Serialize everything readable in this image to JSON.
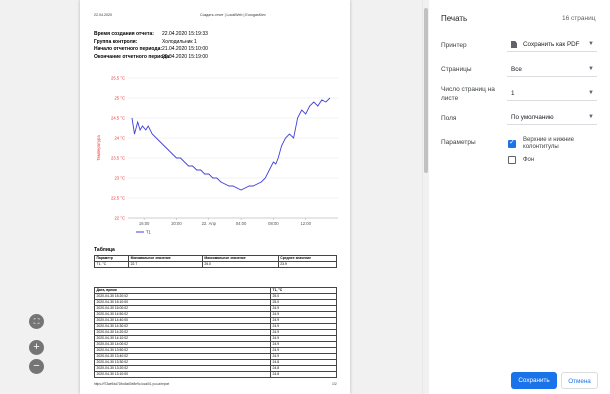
{
  "preview": {
    "header_date": "22.04.2020",
    "header_title": "Создать отчет | LocalWeb | EurogasKiev",
    "info": [
      {
        "label": "Время создания отчета:",
        "value": "22.04.2020 15:19:33"
      },
      {
        "label": "Группа контроля:",
        "value": "Холодильник 1"
      },
      {
        "label": "Начало отчетного периода:",
        "value": "21.04.2020 15:10:00"
      },
      {
        "label": "Окончание отчетного периода:",
        "value": "22.04.2020 15:19:00"
      }
    ],
    "summary_title": "Таблица",
    "summary_headers": [
      "Параметр",
      "Минимальное значение",
      "Максимальное значение",
      "Среднее значение"
    ],
    "summary_row": [
      "T1, °C",
      "22.7",
      "25.0",
      "23.9"
    ],
    "data_headers": [
      "Дата, время",
      "T1, °C"
    ],
    "data_rows": [
      [
        "2020-04-30 15:20:02",
        "25.0"
      ],
      [
        "2020-04-30 15:10:00",
        "25.0"
      ],
      [
        "2020-04-30 15:00:02",
        "24.9"
      ],
      [
        "2020-04-30 14:50:02",
        "24.9"
      ],
      [
        "2020-04-30 14:40:00",
        "24.9"
      ],
      [
        "2020-04-30 14:30:02",
        "24.9"
      ],
      [
        "2020-04-30 14:20:02",
        "24.9"
      ],
      [
        "2020-04-30 14:10:02",
        "24.9"
      ],
      [
        "2020-04-30 14:00:02",
        "24.9"
      ],
      [
        "2020-04-30 13:50:02",
        "24.9"
      ],
      [
        "2020-04-30 13:40:02",
        "24.9"
      ],
      [
        "2020-04-30 13:30:02",
        "24.8"
      ],
      [
        "2020-04-30 13:20:02",
        "24.8"
      ],
      [
        "2020-04-30 13:10:00",
        "24.8"
      ]
    ],
    "footer_url": "https://f73ae9da71fbc5a60e8e9c.local01.yo.ua/report",
    "footer_page": "1/2"
  },
  "chart_data": {
    "type": "line",
    "ylabel": "Температура",
    "yticks": [
      "25.5 °C",
      "25 °C",
      "24.5 °C",
      "24 °C",
      "23.5 °C",
      "23 °C",
      "22.5 °C",
      "22 °C"
    ],
    "xticks": [
      "16:00",
      "20:00",
      "22. Апр",
      "04:00",
      "08:00",
      "12:00"
    ],
    "ylim": [
      22,
      25.5
    ],
    "series": [
      {
        "name": "T1",
        "color": "#4040d8",
        "x": [
          14.5,
          14.8,
          15.2,
          15.5,
          15.8,
          16.2,
          16.5,
          17,
          17.5,
          18,
          18.5,
          19,
          19.5,
          20,
          20.5,
          21,
          21.5,
          22,
          22.5,
          23,
          23.5,
          24,
          24.5,
          25,
          25.5,
          26,
          26.5,
          27,
          27.5,
          28,
          28.5,
          29,
          29.5,
          30,
          30.5,
          31,
          31.5,
          32,
          32.3,
          32.6,
          33,
          33.5,
          34,
          34.5,
          35,
          35.5,
          36,
          36.5,
          37,
          37.5,
          38,
          38.5,
          39
        ],
        "y": [
          24.5,
          24.1,
          24.4,
          24.2,
          24.3,
          24.2,
          24.3,
          24.1,
          24.0,
          23.9,
          23.8,
          23.7,
          23.6,
          23.5,
          23.5,
          23.4,
          23.3,
          23.3,
          23.2,
          23.2,
          23.1,
          23.1,
          23.0,
          23.0,
          22.9,
          22.85,
          22.8,
          22.8,
          22.75,
          22.7,
          22.75,
          22.8,
          22.8,
          22.85,
          22.9,
          23.0,
          23.2,
          23.4,
          23.35,
          23.5,
          23.8,
          24.0,
          24.1,
          24.0,
          24.5,
          24.7,
          24.6,
          24.8,
          24.9,
          24.8,
          24.95,
          24.9,
          25.0
        ]
      }
    ]
  },
  "panel": {
    "title": "Печать",
    "page_count": "16 страниц",
    "printer_label": "Принтер",
    "printer_value": "Сохранить как PDF",
    "pages_label": "Страницы",
    "pages_value": "Все",
    "per_sheet_label": "Число страниц на листе",
    "per_sheet_value": "1",
    "margins_label": "Поля",
    "margins_value": "По умолчанию",
    "options_label": "Параметры",
    "option_headers": "Верхние и нижние колонтитулы",
    "option_headers_checked": true,
    "option_bg": "Фон",
    "option_bg_checked": false,
    "save_label": "Сохранить",
    "cancel_label": "Отмена"
  },
  "zoom": {
    "fit": "⛶",
    "plus": "+",
    "minus": "−"
  },
  "colors": {
    "accent": "#1a73e8",
    "chart_axis_red": "#e33"
  }
}
